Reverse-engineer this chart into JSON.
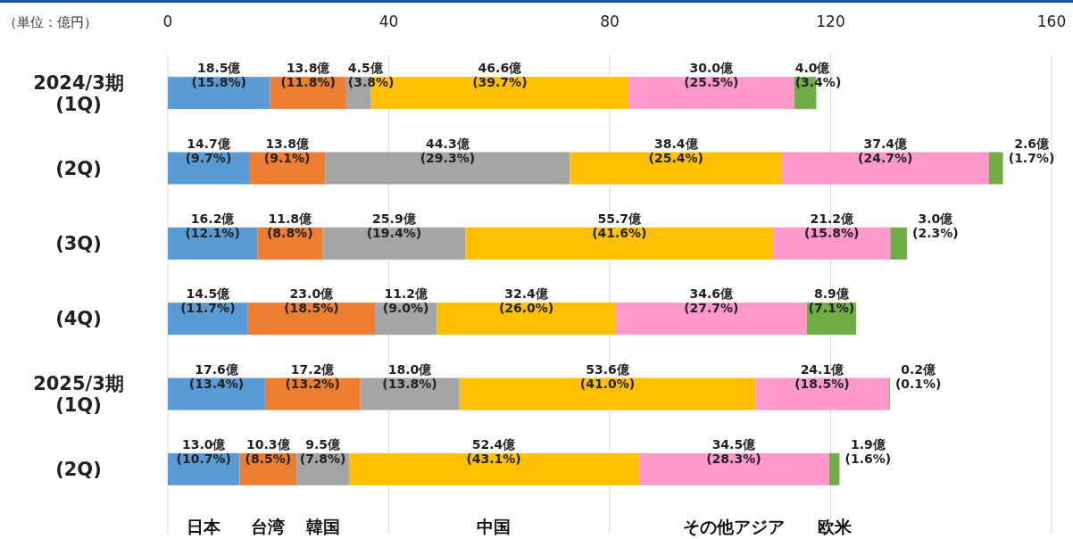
{
  "chart_data": {
    "type": "bar",
    "orientation": "horizontal",
    "stacked": true,
    "categories": [
      "2024/3期\n(1Q)",
      "(2Q)",
      "(3Q)",
      "(4Q)",
      "2025/3期\n(1Q)",
      "(2Q)"
    ],
    "xlim": [
      0,
      160
    ],
    "xticks": [
      0,
      40,
      80,
      120,
      160
    ],
    "grid": "x",
    "annotations": [
      "（単位：億円）"
    ],
    "series": [
      {
        "name": "日本",
        "color": "#5b9bd5",
        "values": [
          18.5,
          14.7,
          16.2,
          14.5,
          17.6,
          13.0
        ],
        "value_labels": [
          "18.5億\n(15.8%)",
          "14.7億\n(9.7%)",
          "16.2億\n(12.1%)",
          "14.5億\n(11.7%)",
          "17.6億\n(13.4%)",
          "13.0億\n(10.7%)"
        ]
      },
      {
        "name": "台湾",
        "color": "#ed7d31",
        "values": [
          13.8,
          13.8,
          11.8,
          23.0,
          17.2,
          10.3
        ],
        "value_labels": [
          "13.8億\n(11.8%)",
          "13.8億\n(9.1%)",
          "11.8億\n(8.8%)",
          "23.0億\n(18.5%)",
          "17.2億\n(13.2%)",
          "10.3億\n(8.5%)"
        ]
      },
      {
        "name": "韓国",
        "color": "#a5a5a5",
        "values": [
          4.5,
          44.3,
          25.9,
          11.2,
          18.0,
          9.5
        ],
        "value_labels": [
          "4.5億\n(3.8%)",
          "44.3億\n(29.3%)",
          "25.9億\n(19.4%)",
          "11.2億\n(9.0%)",
          "18.0億\n(13.8%)",
          "9.5億\n(7.8%)"
        ]
      },
      {
        "name": "中国",
        "color": "#ffc000",
        "values": [
          46.6,
          38.4,
          55.7,
          32.4,
          53.6,
          52.4
        ],
        "value_labels": [
          "46.6億\n(39.7%)",
          "38.4億\n(25.4%)",
          "55.7億\n(41.6%)",
          "32.4億\n(26.0%)",
          "53.6億\n(41.0%)",
          "52.4億\n(43.1%)"
        ]
      },
      {
        "name": "その他アジア",
        "color": "#ff99cc",
        "values": [
          30.0,
          37.4,
          21.2,
          34.6,
          24.1,
          34.5
        ],
        "value_labels": [
          "30.0億\n(25.5%)",
          "37.4億\n(24.7%)",
          "21.2億\n(15.8%)",
          "34.6億\n(27.7%)",
          "24.1億\n(18.5%)",
          "34.5億\n(28.3%)"
        ]
      },
      {
        "name": "欧米",
        "color": "#70ad47",
        "values": [
          4.0,
          2.6,
          3.0,
          8.9,
          0.2,
          1.9
        ],
        "value_labels": [
          "4.0億\n(3.4%)",
          "2.6億\n(1.7%)",
          "3.0億\n(2.3%)",
          "8.9億\n(7.1%)",
          "0.2億\n(0.1%)",
          "1.9億\n(1.6%)"
        ]
      }
    ]
  }
}
